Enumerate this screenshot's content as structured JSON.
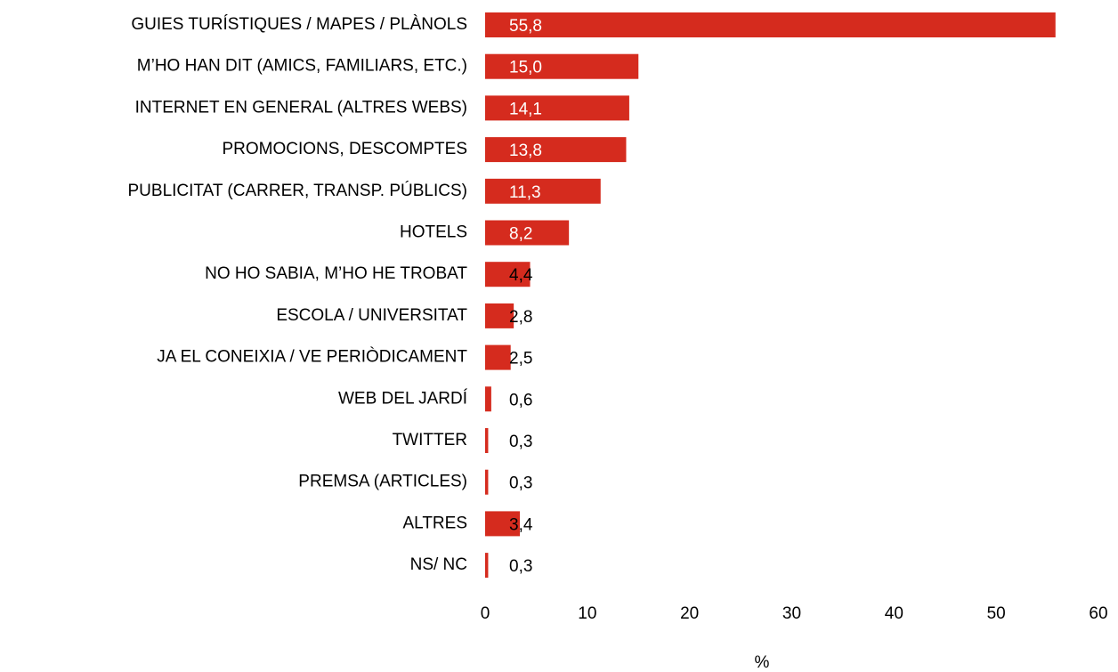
{
  "chart_data": {
    "type": "bar",
    "orientation": "horizontal",
    "categories": [
      "GUIES TURÍSTIQUES / MAPES / PLÀNOLS",
      "M’HO HAN DIT (AMICS, FAMILIARS, ETC.)",
      "INTERNET EN GENERAL (ALTRES WEBS)",
      "PROMOCIONS, DESCOMPTES",
      "PUBLICITAT (CARRER, TRANSP. PÚBLICS)",
      "HOTELS",
      "NO HO SABIA, M’HO HE TROBAT",
      "ESCOLA / UNIVERSITAT",
      "JA EL CONEIXIA / VE PERIÒDICAMENT",
      "WEB DEL JARDÍ",
      "TWITTER",
      "PREMSA (ARTICLES)",
      "ALTRES",
      "NS/ NC"
    ],
    "values": [
      55.8,
      15.0,
      14.1,
      13.8,
      11.3,
      8.2,
      4.4,
      2.8,
      2.5,
      0.6,
      0.3,
      0.3,
      3.4,
      0.3
    ],
    "value_labels": [
      "55,8",
      "15,0",
      "14,1",
      "13,8",
      "11,3",
      "8,2",
      "4,4",
      "2,8",
      "2,5",
      "0,6",
      "0,3",
      "0,3",
      "3,4",
      "0,3"
    ],
    "color": "#d52b1e",
    "xlim": [
      0,
      60
    ],
    "xticks": [
      0,
      10,
      20,
      30,
      40,
      50,
      60
    ],
    "x_label": "%",
    "grid": false
  }
}
